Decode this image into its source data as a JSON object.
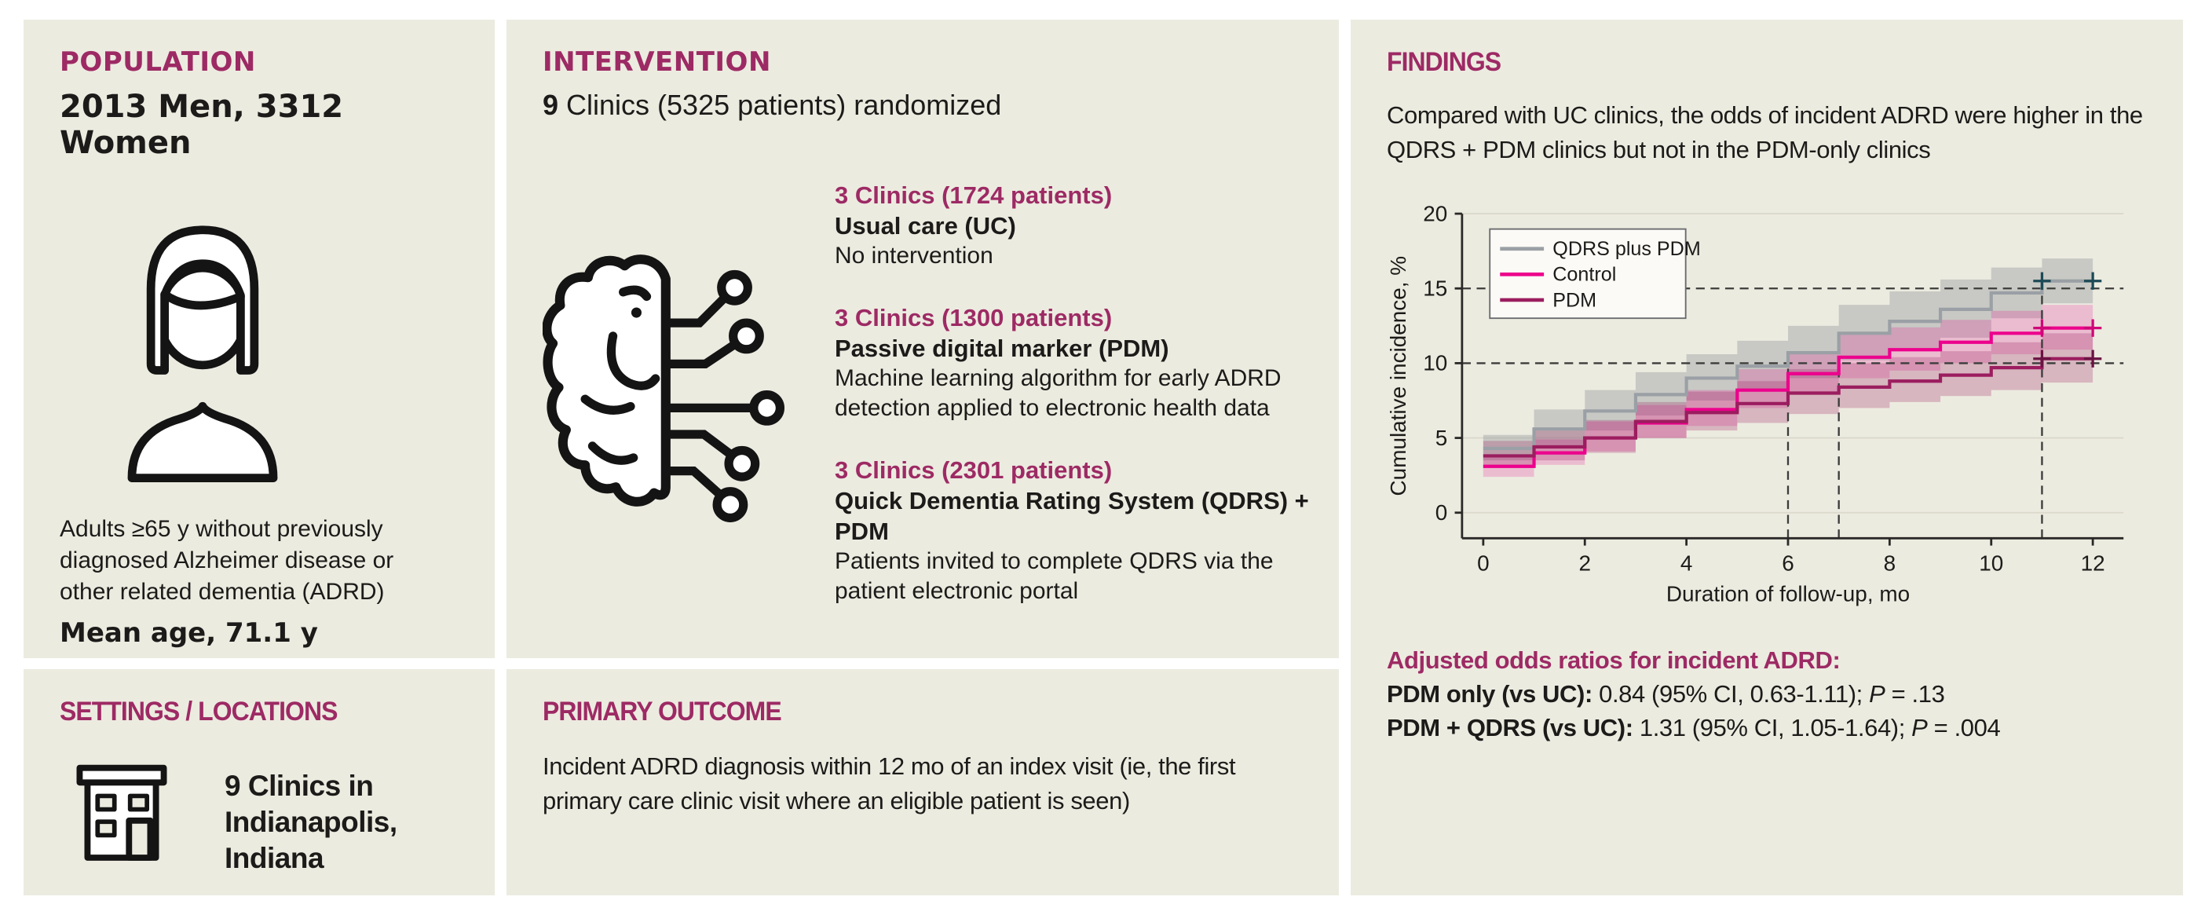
{
  "population": {
    "heading": "POPULATION",
    "subheading": "2013 Men, 3312 Women",
    "description": "Adults ≥65 y without previously diagnosed Alzheimer disease or other related dementia (ADRD)",
    "mean_age": "Mean age, 71.1 y",
    "icon": "woman-icon"
  },
  "settings": {
    "heading": "SETTINGS / LOCATIONS",
    "text": "9 Clinics in Indianapolis, Indiana",
    "icon": "clinic-building-icon"
  },
  "intervention": {
    "heading": "INTERVENTION",
    "lead_bold": "9",
    "lead_rest": " Clinics (5325 patients) randomized",
    "icon": "brain-circuit-icon",
    "arms": [
      {
        "clinics": "3 Clinics (1724 patients)",
        "name": "Usual care (UC)",
        "desc": "No intervention"
      },
      {
        "clinics": "3 Clinics (1300 patients)",
        "name": "Passive digital marker (PDM)",
        "desc": "Machine learning algorithm for early ADRD detection applied to electronic health data"
      },
      {
        "clinics": "3 Clinics (2301 patients)",
        "name": "Quick Dementia Rating System (QDRS) + PDM",
        "desc": "Patients invited to complete QDRS via the patient electronic portal"
      }
    ]
  },
  "outcome": {
    "heading": "PRIMARY OUTCOME",
    "text": "Incident ADRD diagnosis within 12 mo of an index visit (ie, the first primary care clinic visit where an eligible patient is seen)"
  },
  "findings": {
    "heading": "FINDINGS",
    "intro": "Compared with UC clinics, the odds of incident ADRD were higher in the QDRS + PDM clinics but not in the PDM-only clinics",
    "odds_heading": "Adjusted odds ratios for incident ADRD:",
    "odds": [
      {
        "label": "PDM only (vs UC):",
        "mid": " 0.84 (95% CI, 0.63-1.11); ",
        "p": "P",
        "tail": " = .13"
      },
      {
        "label": "PDM + QDRS (vs UC):",
        "mid": " 1.31 (95% CI, 1.05-1.64); ",
        "p": "P",
        "tail": " = .004"
      }
    ]
  },
  "colors": {
    "panel_bg": "#ecebe0",
    "accent_magenta": "#9d2a64",
    "text": "#1c1b19",
    "axis": "#2a2927",
    "gridline": "#dbd8cc",
    "dashed_line": "#3c3c3b",
    "legend_bg": "#fbfaf6",
    "legend_border": "#6a6b6e"
  },
  "chart_data": {
    "type": "line",
    "step": true,
    "title": "",
    "xlabel": "Duration of follow-up, mo",
    "ylabel": "Cumulative incidence, %",
    "xlim": [
      0,
      12
    ],
    "ylim": [
      0,
      20
    ],
    "xticks": [
      0,
      2,
      4,
      6,
      8,
      10,
      12
    ],
    "yticks": [
      0,
      5,
      10,
      15,
      20
    ],
    "grid": "horizontal-light",
    "legend_position": "top-left",
    "months": [
      0,
      1,
      2,
      3,
      4,
      5,
      6,
      7,
      8,
      9,
      10,
      11,
      12
    ],
    "series": [
      {
        "name": "QDRS plus PDM",
        "color": "#9aa0a5",
        "band": "rgba(141,146,150,0.38)",
        "censor_color": "#1c4a56",
        "values": [
          4.3,
          5.6,
          6.8,
          7.9,
          9.0,
          9.8,
          10.7,
          12.0,
          12.8,
          13.6,
          14.7,
          15.5
        ],
        "lower": [
          3.5,
          4.5,
          5.5,
          6.5,
          7.5,
          8.2,
          9.0,
          10.2,
          10.9,
          11.7,
          13.0,
          14.0
        ],
        "upper": [
          5.2,
          6.9,
          8.2,
          9.4,
          10.6,
          11.5,
          12.5,
          13.9,
          14.8,
          15.6,
          16.4,
          17.0
        ]
      },
      {
        "name": "Control",
        "color": "#ec008c",
        "band": "rgba(236,0,140,0.20)",
        "censor_color": "#cf0778",
        "values": [
          3.1,
          4.0,
          5.0,
          6.0,
          6.9,
          8.2,
          9.3,
          10.4,
          10.9,
          11.4,
          12.0,
          12.35
        ],
        "lower": [
          2.4,
          3.2,
          4.1,
          5.0,
          5.8,
          7.0,
          8.0,
          9.0,
          9.5,
          10.0,
          10.6,
          10.9
        ],
        "upper": [
          3.9,
          4.9,
          6.1,
          7.2,
          8.2,
          9.6,
          10.8,
          11.9,
          12.4,
          12.9,
          13.5,
          13.9
        ]
      },
      {
        "name": "PDM",
        "color": "#9b1d5f",
        "band": "rgba(155,29,95,0.26)",
        "censor_color": "#6a1343",
        "values": [
          3.8,
          4.4,
          5.0,
          6.1,
          6.7,
          7.3,
          8.0,
          8.4,
          8.8,
          9.2,
          9.7,
          10.3
        ],
        "lower": [
          3.0,
          3.5,
          4.0,
          5.0,
          5.5,
          6.0,
          6.6,
          7.0,
          7.4,
          7.8,
          8.2,
          8.7
        ],
        "upper": [
          4.8,
          5.5,
          6.2,
          7.4,
          8.1,
          8.8,
          9.6,
          10.0,
          10.4,
          10.8,
          11.4,
          12.0
        ]
      }
    ],
    "reference_lines": {
      "horizontal": [
        10,
        15
      ],
      "vertical": [
        {
          "x": 6,
          "y_top": 10
        },
        {
          "x": 7,
          "y_top": 10.4
        },
        {
          "x": 11,
          "y_top": 15.5
        }
      ]
    },
    "censor_months": [
      11,
      12
    ]
  }
}
